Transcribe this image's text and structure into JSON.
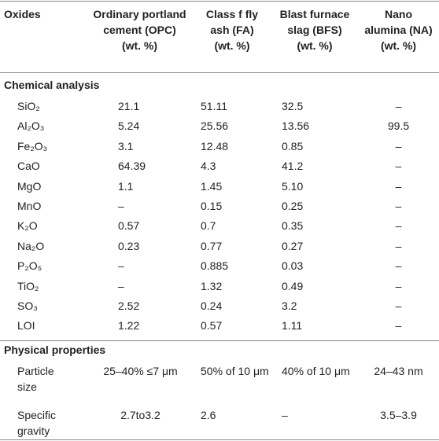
{
  "table": {
    "header": [
      [
        "Oxides"
      ],
      [
        "Ordinary portland",
        "cement (OPC)",
        "(wt. %)"
      ],
      [
        "Class f fly",
        "ash (FA)",
        "(wt. %)"
      ],
      [
        "Blast furnace",
        "slag (BFS)",
        "(wt. %)"
      ],
      [
        "Nano",
        "alumina (NA)",
        "(wt. %)"
      ]
    ],
    "sections": [
      {
        "title": "Chemical analysis",
        "rows": [
          [
            [
              "SiO₂"
            ],
            [
              "21.1"
            ],
            [
              "51.11"
            ],
            [
              "32.5"
            ],
            [
              "–"
            ]
          ],
          [
            [
              "Al₂O₃"
            ],
            [
              "5.24"
            ],
            [
              "25.56"
            ],
            [
              "13.56"
            ],
            [
              "99.5"
            ]
          ],
          [
            [
              "Fe₂O₃"
            ],
            [
              "3.1"
            ],
            [
              "12.48"
            ],
            [
              "0.85"
            ],
            [
              "–"
            ]
          ],
          [
            [
              "CaO"
            ],
            [
              "64.39"
            ],
            [
              "4.3"
            ],
            [
              "41.2"
            ],
            [
              "–"
            ]
          ],
          [
            [
              "MgO"
            ],
            [
              "1.1"
            ],
            [
              "1.45"
            ],
            [
              "5.10"
            ],
            [
              "–"
            ]
          ],
          [
            [
              "MnO"
            ],
            [
              "–"
            ],
            [
              "0.15"
            ],
            [
              "0.25"
            ],
            [
              "–"
            ]
          ],
          [
            [
              "K₂O"
            ],
            [
              "0.57"
            ],
            [
              "0.7"
            ],
            [
              "0.35"
            ],
            [
              "–"
            ]
          ],
          [
            [
              "Na₂O"
            ],
            [
              "0.23"
            ],
            [
              "0.77"
            ],
            [
              "0.27"
            ],
            [
              "–"
            ]
          ],
          [
            [
              "P₂O₅"
            ],
            [
              "–"
            ],
            [
              "0.885"
            ],
            [
              "0.03"
            ],
            [
              "–"
            ]
          ],
          [
            [
              "TiO₂"
            ],
            [
              "–"
            ],
            [
              "1.32"
            ],
            [
              "0.49"
            ],
            [
              "–"
            ]
          ],
          [
            [
              "SO₃"
            ],
            [
              "2.52"
            ],
            [
              "0.24"
            ],
            [
              "3.2"
            ],
            [
              "–"
            ]
          ],
          [
            [
              "LOI"
            ],
            [
              "1.22"
            ],
            [
              "0.57"
            ],
            [
              "1.11"
            ],
            [
              "–"
            ]
          ]
        ]
      },
      {
        "title": "Physical properties",
        "rows": [
          [
            [
              "Particle",
              "size"
            ],
            [
              "25–40% ≤7 μm"
            ],
            [
              "50% of 10 μm"
            ],
            [
              "40% of 10 μm"
            ],
            [
              "24–43 nm"
            ]
          ],
          [
            [
              "Specific",
              "gravity"
            ],
            [
              "2.7to3.2"
            ],
            [
              "2.6"
            ],
            [
              "–"
            ],
            [
              "3.5–3.9"
            ]
          ]
        ]
      }
    ]
  }
}
